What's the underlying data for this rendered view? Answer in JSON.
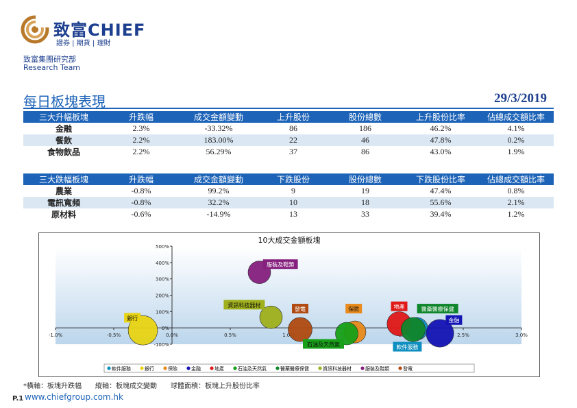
{
  "brand": {
    "name": "致富CHIEF",
    "subtitle": "證券 | 期貨 | 理財",
    "group": "致富集團研究部",
    "team": "Research Team",
    "colors": {
      "primary": "#1d3f8f",
      "accent": "#1d63b8",
      "swirl": "#b8792a"
    }
  },
  "header": {
    "title": "每日板塊表現",
    "date": "29/3/2019"
  },
  "top_table": {
    "headers": [
      "三大升幅板塊",
      "升跌幅",
      "成交金額變動",
      "上升股份",
      "股份總數",
      "上升股份比率",
      "佔總成交額比率"
    ],
    "rows": [
      [
        "金融",
        "2.3%",
        "-33.32%",
        "86",
        "186",
        "46.2%",
        "4.1%"
      ],
      [
        "餐飲",
        "2.2%",
        "183.00%",
        "22",
        "46",
        "47.8%",
        "0.2%"
      ],
      [
        "食物飲品",
        "2.2%",
        "56.29%",
        "37",
        "86",
        "43.0%",
        "1.9%"
      ]
    ]
  },
  "bottom_table": {
    "headers": [
      "三大跌幅板塊",
      "升跌幅",
      "成交金額變動",
      "下跌股份",
      "股份總數",
      "下跌股份比率",
      "佔總成交額比率"
    ],
    "rows": [
      [
        "農業",
        "-0.8%",
        "99.2%",
        "9",
        "19",
        "47.4%",
        "0.8%"
      ],
      [
        "電訊寬頻",
        "-0.8%",
        "32.2%",
        "10",
        "18",
        "55.6%",
        "2.1%"
      ],
      [
        "原材料",
        "-0.6%",
        "-14.9%",
        "13",
        "33",
        "39.4%",
        "1.2%"
      ]
    ]
  },
  "chart_data": {
    "type": "scatter",
    "title": "10大成交金額板塊",
    "xlim": [
      -1.0,
      3.0
    ],
    "ylim": [
      -100,
      500
    ],
    "x_ticks": [
      "-1.0%",
      "-0.5%",
      "0.0%",
      "0.5%",
      "1.0%",
      "1.5%",
      "2.0%",
      "2.5%",
      "3.0%"
    ],
    "y_ticks": [
      "-100%",
      "0%",
      "100%",
      "200%",
      "300%",
      "400%",
      "500%"
    ],
    "series": [
      {
        "name": "軟件服務",
        "x": 2.1,
        "y": -5,
        "size": 2.0,
        "color": "#0f8fbf"
      },
      {
        "name": "銀行",
        "x": -0.25,
        "y": -15,
        "size": 5.0,
        "color": "#e8d414"
      },
      {
        "name": "保險",
        "x": 1.57,
        "y": -25,
        "size": 1.8,
        "color": "#e88a1c"
      },
      {
        "name": "金融",
        "x": 2.3,
        "y": -33,
        "size": 4.1,
        "color": "#1414b4"
      },
      {
        "name": "地產",
        "x": 1.95,
        "y": 25,
        "size": 2.6,
        "color": "#e01818"
      },
      {
        "name": "石油及天然氣",
        "x": 1.5,
        "y": -35,
        "size": 2.0,
        "color": "#18a018"
      },
      {
        "name": "醫藥醫療保健",
        "x": 2.07,
        "y": -10,
        "size": 2.6,
        "color": "#10862c"
      },
      {
        "name": "資訊科技器材",
        "x": 0.85,
        "y": 65,
        "size": 2.0,
        "color": "#a0b01c"
      },
      {
        "name": "服裝及鞋類",
        "x": 0.75,
        "y": 340,
        "size": 2.0,
        "color": "#86207e"
      },
      {
        "name": "發電",
        "x": 1.1,
        "y": -10,
        "size": 2.5,
        "color": "#b04a10"
      }
    ],
    "labels": [
      {
        "text": "服裝及鞋類",
        "x": 0.93,
        "y": 390,
        "color": "#86207e",
        "dark": true
      },
      {
        "text": "資訊科技器材",
        "x": 0.62,
        "y": 142,
        "color": "#a0b01c",
        "dark": false
      },
      {
        "text": "發電",
        "x": 1.1,
        "y": 118,
        "color": "#b04a10",
        "dark": true
      },
      {
        "text": "保險",
        "x": 1.56,
        "y": 118,
        "color": "#e88a1c",
        "dark": false
      },
      {
        "text": "地產",
        "x": 1.95,
        "y": 132,
        "color": "#e01818",
        "dark": true
      },
      {
        "text": "醫藥醫療保健",
        "x": 2.28,
        "y": 118,
        "color": "#10862c",
        "dark": true
      },
      {
        "text": "金融",
        "x": 2.42,
        "y": 48,
        "color": "#1414b4",
        "dark": true
      },
      {
        "text": "銀行",
        "x": -0.34,
        "y": 62,
        "color": "#e8d414",
        "dark": false
      },
      {
        "text": "石油及天然氣",
        "x": 1.3,
        "y": -98,
        "color": "#18a018",
        "dark": false
      },
      {
        "text": "軟件服務",
        "x": 2.02,
        "y": -115,
        "color": "#0f8fbf",
        "dark": true
      }
    ],
    "legend_order": [
      "軟件服務",
      "銀行",
      "保險",
      "金融",
      "地產",
      "石油及天然氣",
      "醫藥醫療保健",
      "資訊科技器材",
      "服裝及鞋類",
      "發電"
    ],
    "legend": "bottom",
    "grid": false
  },
  "footer": {
    "note": "*橫軸：板塊升跌幅　　縱軸：板塊成交變動　　球體面積：板塊上升股份比率",
    "page": "P.1",
    "website": "www.chiefgroup.com.hk"
  }
}
